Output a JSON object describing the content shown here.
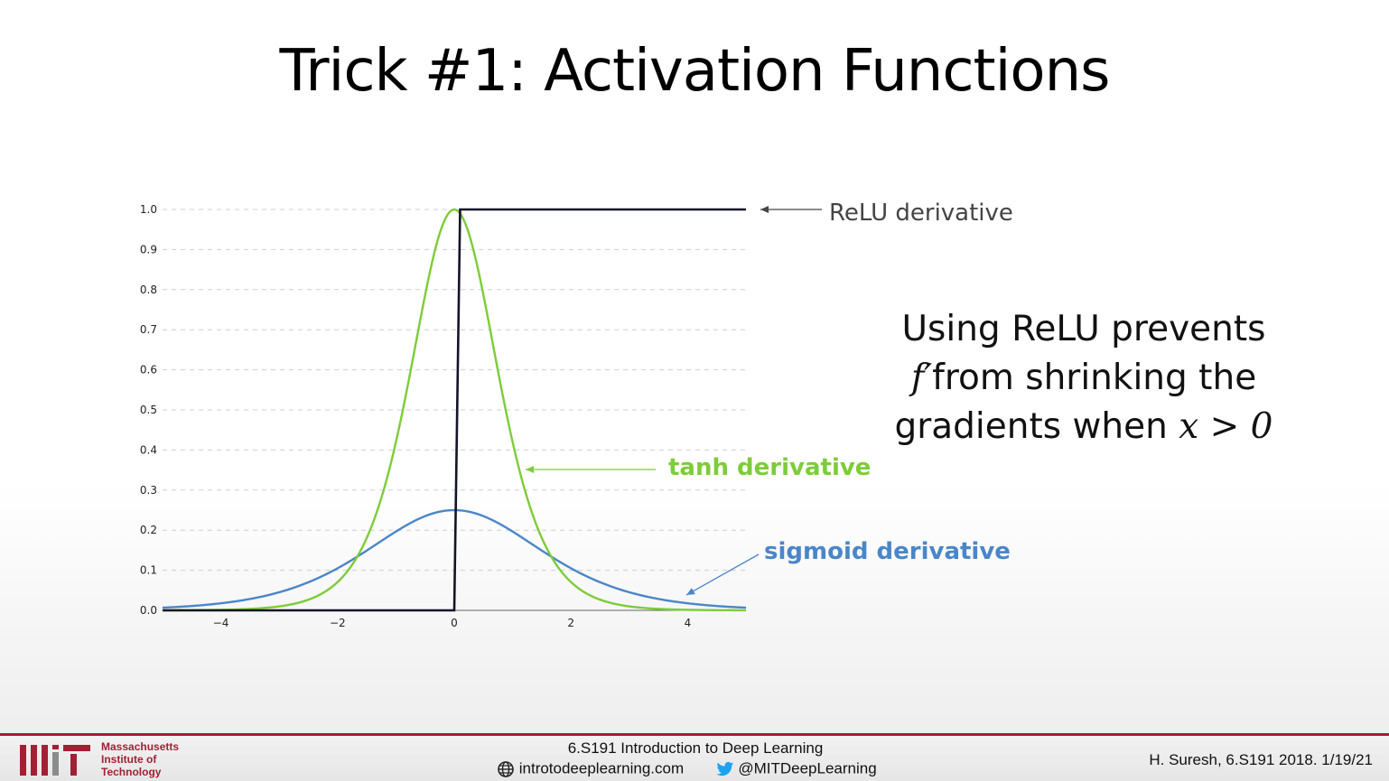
{
  "slide": {
    "title": "Trick #1: Activation Functions",
    "note": {
      "line1": "Using ReLU prevents",
      "line2_math": "f′",
      "line2_text": "from shrinking the",
      "line3_text": "gradients when",
      "line3_math": "x > 0"
    }
  },
  "chart_data": {
    "type": "line",
    "xlim": [
      -5,
      5
    ],
    "ylim": [
      0,
      1.0
    ],
    "x_ticks": [
      "−4",
      "−2",
      "0",
      "2",
      "4"
    ],
    "x_tick_values": [
      -4,
      -2,
      0,
      2,
      4
    ],
    "y_ticks": [
      "0.0",
      "0.1",
      "0.2",
      "0.3",
      "0.4",
      "0.5",
      "0.6",
      "0.7",
      "0.8",
      "0.9",
      "1.0"
    ],
    "y_tick_values": [
      0,
      0.1,
      0.2,
      0.3,
      0.4,
      0.5,
      0.6,
      0.7,
      0.8,
      0.9,
      1.0
    ],
    "grid": "horizontal-dashed",
    "series": [
      {
        "name": "ReLU derivative",
        "color": "#141428",
        "function": "step",
        "x": [
          -5,
          0,
          0.1,
          5
        ],
        "y": [
          0,
          0,
          1,
          1
        ]
      },
      {
        "name": "tanh derivative",
        "color": "#7dcc38",
        "function": "1 - tanh(x)^2"
      },
      {
        "name": "sigmoid derivative",
        "color": "#4a86c8",
        "function": "sigmoid(x) * (1 - sigmoid(x))"
      }
    ],
    "annotations": [
      {
        "text": "ReLU derivative",
        "color": "#444444"
      },
      {
        "text": "tanh derivative",
        "color": "#7dcc38"
      },
      {
        "text": "sigmoid derivative",
        "color": "#4a86c8"
      }
    ]
  },
  "footer": {
    "institution": [
      "Massachusetts",
      "Institute of",
      "Technology"
    ],
    "course": "6.S191 Introduction to Deep Learning",
    "website": "introtodeeplearning.com",
    "twitter": "@MITDeepLearning",
    "credit": "H. Suresh, 6.S191 2018.  1/19/21",
    "accent_color": "#a31f34"
  }
}
